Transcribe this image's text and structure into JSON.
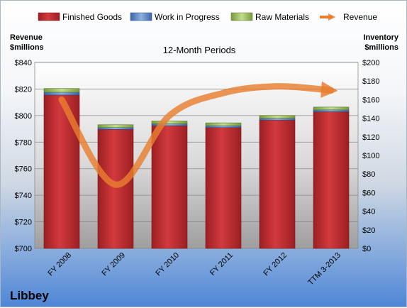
{
  "chart_data": {
    "type": "bar",
    "subtitle": "12-Month Periods",
    "categories": [
      "FY 2008",
      "FY 2009",
      "FY 2010",
      "FY 2011",
      "FY 2012",
      "TTM 3-2013"
    ],
    "series": [
      {
        "name": "Finished Goods",
        "axis": "right",
        "stacked": true,
        "color": "#c0282d",
        "values": [
          165,
          128,
          132,
          130,
          138,
          147
        ]
      },
      {
        "name": "Work in Progress",
        "axis": "right",
        "stacked": true,
        "color": "#4f81bd",
        "values": [
          3,
          2,
          2,
          2,
          2,
          2
        ]
      },
      {
        "name": "Raw Materials",
        "axis": "right",
        "stacked": true,
        "color": "#9bbb59",
        "values": [
          4,
          3,
          3,
          3,
          3,
          3
        ]
      },
      {
        "name": "Revenue",
        "axis": "left",
        "type": "line",
        "color": "#e97e30",
        "values": [
          812,
          748,
          800,
          817,
          822,
          819
        ]
      }
    ],
    "left_axis": {
      "label_lines": [
        "Revenue",
        "$millions"
      ],
      "ylim": [
        700,
        840
      ],
      "ticks": [
        "$700",
        "$720",
        "$740",
        "$760",
        "$780",
        "$800",
        "$820",
        "$840"
      ]
    },
    "right_axis": {
      "label_lines": [
        "Inventory",
        "$millions"
      ],
      "ylim": [
        0,
        200
      ],
      "ticks": [
        "$0",
        "$20",
        "$40",
        "$60",
        "$80",
        "$100",
        "$120",
        "$140",
        "$160",
        "$180",
        "$200"
      ]
    },
    "grid": true,
    "legend_position": "top"
  },
  "company": "Libbey"
}
